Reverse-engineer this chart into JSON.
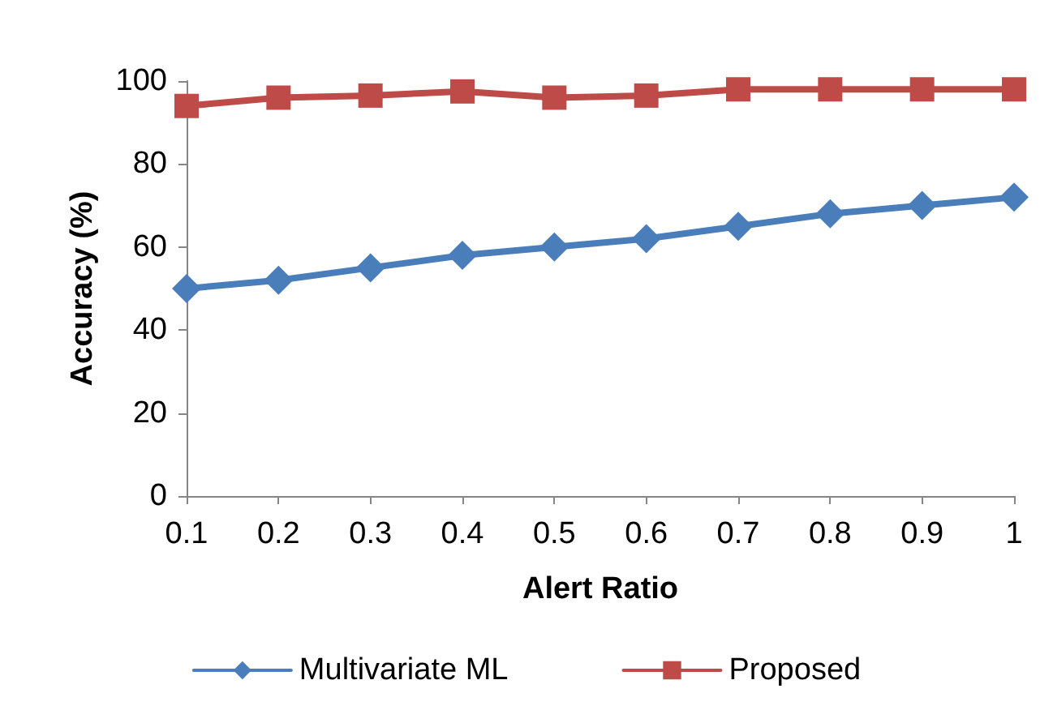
{
  "chart_data": {
    "type": "line",
    "xlabel": "Alert Ratio",
    "ylabel": "Accuracy (%)",
    "categories": [
      "0.1",
      "0.2",
      "0.3",
      "0.4",
      "0.5",
      "0.6",
      "0.7",
      "0.8",
      "0.9",
      "1"
    ],
    "series": [
      {
        "name": "Multivariate ML",
        "color": "#4a7ebb",
        "marker": "diamond",
        "values": [
          50,
          52,
          55,
          58,
          60,
          62,
          65,
          68,
          70,
          72
        ]
      },
      {
        "name": "Proposed",
        "color": "#be4b48",
        "marker": "square",
        "values": [
          94,
          96,
          96.5,
          97.5,
          96,
          96.5,
          98,
          98,
          98,
          98
        ]
      }
    ],
    "ylim": [
      0,
      100
    ],
    "yticks": [
      0,
      20,
      40,
      60,
      80,
      100
    ],
    "grid": false,
    "legend": "bottom",
    "line_style": "solid"
  }
}
